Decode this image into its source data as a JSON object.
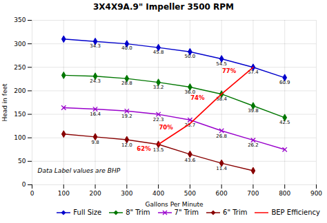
{
  "chart_data": {
    "type": "line",
    "title": "3X4X9A.9\" Impeller 3500 RPM",
    "xlabel": "Gallons Per Minute",
    "ylabel": "Head in feet",
    "xlim": [
      0,
      900
    ],
    "ylim": [
      0,
      350
    ],
    "xticks": [
      0,
      100,
      200,
      300,
      400,
      500,
      600,
      700,
      800,
      900
    ],
    "yticks": [
      0,
      50,
      100,
      150,
      200,
      250,
      300,
      350
    ],
    "grid": true,
    "legend": "lower right",
    "annotation": "Data Label values are BHP",
    "series": [
      {
        "name": "Full Size",
        "color": "#0000CC",
        "marker": "diamond",
        "x": [
          100,
          200,
          300,
          400,
          500,
          600,
          700,
          800
        ],
        "values": [
          310,
          305,
          300,
          292,
          283,
          268,
          250,
          228
        ],
        "point_labels": {
          "color": "black",
          "x": [
            200,
            300,
            400,
            500,
            600,
            700,
            800
          ],
          "y": [
            300,
            295,
            286,
            277,
            262,
            244,
            222
          ],
          "labels": [
            "34.3",
            "40.0",
            "45.8",
            "50.0",
            "54.5",
            "57.4",
            "60.9"
          ]
        }
      },
      {
        "name": "8\" Trim",
        "color": "#007700",
        "marker": "diamond",
        "x": [
          100,
          200,
          300,
          400,
          500,
          600,
          700,
          800
        ],
        "values": [
          233,
          231,
          226,
          218,
          208,
          193,
          168,
          143
        ],
        "point_labels": {
          "color": "black",
          "x": [
            200,
            300,
            400,
            500,
            600,
            700,
            800
          ],
          "y": [
            225,
            220,
            212,
            202,
            187,
            162,
            137
          ],
          "labels": [
            "24.3",
            "28.8",
            "33.2",
            "36.0",
            "38.4",
            "39.8",
            "42.5"
          ]
        }
      },
      {
        "name": "7\" Trim",
        "color": "#9900CC",
        "marker": "times",
        "x": [
          100,
          200,
          300,
          400,
          500,
          600,
          700,
          800
        ],
        "values": [
          164,
          161,
          157,
          150,
          138,
          115,
          95,
          75
        ],
        "point_labels": {
          "color": "black",
          "x": [
            200,
            300,
            400,
            500,
            600,
            700
          ],
          "y": [
            154,
            150,
            143,
            131,
            108,
            88
          ],
          "labels": [
            "16.4",
            "19.2",
            "22.3",
            "23.7",
            "26.8",
            "26.2"
          ]
        }
      },
      {
        "name": "6\" Trim",
        "color": "#880000",
        "marker": "diamond",
        "x": [
          100,
          200,
          300,
          400,
          500,
          600,
          700
        ],
        "values": [
          108,
          102,
          96,
          86,
          65,
          46,
          30
        ],
        "point_labels": {
          "color": "black",
          "x": [
            200,
            300,
            400,
            500,
            600
          ],
          "y": [
            95,
            89,
            79,
            57,
            39
          ],
          "labels": [
            "9.8",
            "12.0",
            "13.5",
            "43.6",
            "11.4"
          ]
        }
      },
      {
        "name": "BEP Efficiency",
        "color": "#FF0000",
        "x": [
          400,
          500,
          600,
          700
        ],
        "values": [
          86,
          130,
          193,
          250
        ],
        "point_labels": {
          "color": "#FF0000",
          "x": [
            398,
            468,
            568,
            668
          ],
          "y": [
            82,
            127,
            190,
            247
          ],
          "labels": [
            "62%",
            "70%",
            "74%",
            "77%"
          ]
        }
      }
    ]
  }
}
